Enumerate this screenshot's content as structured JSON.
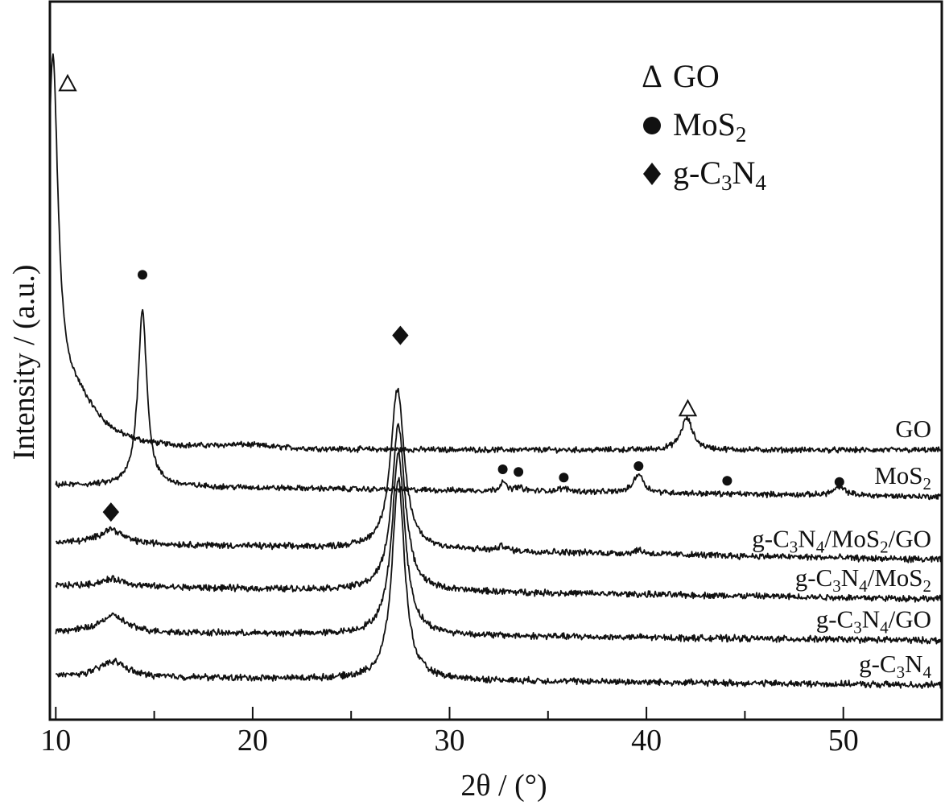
{
  "chart_data": {
    "type": "line",
    "xlabel": "2θ / (°)",
    "ylabel": "Intensity / (a.u.)",
    "xlim": [
      9.7,
      55
    ],
    "x_major_ticks": [
      10,
      20,
      30,
      40,
      50
    ],
    "x_tick_labels": [
      "10",
      "20",
      "30",
      "40",
      "50"
    ],
    "y_units": "offset intensity, arbitrary units (0–100 scale, stacked traces)",
    "legend": {
      "placement": "top-right",
      "entries": [
        {
          "symbol": "triangle-open",
          "symbol_text": "Δ",
          "label": "GO"
        },
        {
          "symbol": "circle-filled",
          "symbol_text": "",
          "label": "MoS",
          "sub": "2"
        },
        {
          "symbol": "diamond-filled",
          "symbol_text": "",
          "label": "g-C",
          "sub": "3",
          "label2": "N",
          "sub2": "4"
        }
      ]
    },
    "series": [
      {
        "name": "GO",
        "baseline": 40.5,
        "slope": 0,
        "noise": 0.35,
        "peaks": [
          {
            "x": 9.85,
            "h": 56.5,
            "w": 0.32
          },
          {
            "x": 10.9,
            "h": 8.0,
            "w": 1.5
          },
          {
            "x": 19.5,
            "h": 0.6,
            "w": 1.8
          },
          {
            "x": 42.05,
            "h": 5.0,
            "w": 0.35
          }
        ],
        "markers": [
          {
            "x": 10.6,
            "symbol": "triangle-open",
            "y": 98.0
          },
          {
            "x": 42.1,
            "symbol": "triangle-open",
            "y": 47.0
          }
        ]
      },
      {
        "name": "MoS2",
        "label_parts": [
          "MoS",
          "2"
        ],
        "baseline": 35.0,
        "slope": -0.04,
        "noise": 0.35,
        "peaks": [
          {
            "x": 14.4,
            "h": 27.5,
            "w": 0.28
          },
          {
            "x": 32.7,
            "h": 1.6,
            "w": 0.15
          },
          {
            "x": 33.5,
            "h": 0.6,
            "w": 0.3
          },
          {
            "x": 35.8,
            "h": 0.5,
            "w": 0.4
          },
          {
            "x": 39.6,
            "h": 3.0,
            "w": 0.3
          },
          {
            "x": 49.8,
            "h": 1.2,
            "w": 0.4
          }
        ],
        "markers": [
          {
            "x": 14.4,
            "symbol": "circle-filled",
            "y": 68.0
          },
          {
            "x": 32.7,
            "symbol": "circle-filled",
            "y": 37.5
          },
          {
            "x": 33.5,
            "symbol": "circle-filled",
            "y": 37.1
          },
          {
            "x": 35.8,
            "symbol": "circle-filled",
            "y": 36.2
          },
          {
            "x": 39.6,
            "symbol": "circle-filled",
            "y": 38.0
          },
          {
            "x": 44.1,
            "symbol": "circle-filled",
            "y": 35.7
          },
          {
            "x": 49.8,
            "symbol": "circle-filled",
            "y": 35.5
          }
        ]
      },
      {
        "name": "g-C3N4/MoS2/GO",
        "label_parts": [
          "g-C",
          "3",
          "N",
          "4",
          "/MoS",
          "2",
          "/GO"
        ],
        "baseline": 26.0,
        "slope": -0.06,
        "noise": 0.4,
        "peaks": [
          {
            "x": 12.8,
            "h": 2.3,
            "w": 0.7
          },
          {
            "x": 27.35,
            "h": 25.0,
            "w": 0.42
          },
          {
            "x": 32.7,
            "h": 0.8,
            "w": 0.2
          },
          {
            "x": 39.6,
            "h": 0.6,
            "w": 0.3
          }
        ],
        "markers": [
          {
            "x": 12.8,
            "symbol": "diamond-filled",
            "y": 30.8
          },
          {
            "x": 27.5,
            "symbol": "diamond-filled",
            "y": 58.5
          }
        ]
      },
      {
        "name": "g-C3N4/MoS2",
        "label_parts": [
          "g-C",
          "3",
          "N",
          "4",
          "/MoS",
          "2"
        ],
        "baseline": 19.2,
        "slope": -0.045,
        "noise": 0.4,
        "peaks": [
          {
            "x": 12.9,
            "h": 1.2,
            "w": 0.8
          },
          {
            "x": 27.4,
            "h": 26.0,
            "w": 0.4
          }
        ],
        "markers": []
      },
      {
        "name": "g-C3N4/GO",
        "label_parts": [
          "g-C",
          "3",
          "N",
          "4",
          "/GO"
        ],
        "baseline": 12.0,
        "slope": -0.03,
        "noise": 0.4,
        "peaks": [
          {
            "x": 12.9,
            "h": 2.6,
            "w": 0.8
          },
          {
            "x": 27.4,
            "h": 28.5,
            "w": 0.4
          }
        ],
        "markers": []
      },
      {
        "name": "g-C3N4",
        "label_parts": [
          "g-C",
          "3",
          "N",
          "4"
        ],
        "baseline": 5.0,
        "slope": -0.03,
        "noise": 0.4,
        "peaks": [
          {
            "x": 12.9,
            "h": 2.5,
            "w": 0.8
          },
          {
            "x": 27.4,
            "h": 31.5,
            "w": 0.38
          }
        ],
        "markers": []
      }
    ]
  }
}
